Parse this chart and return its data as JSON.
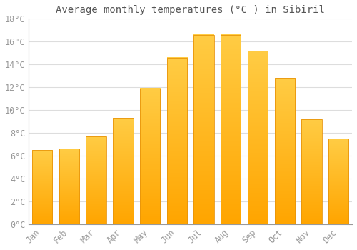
{
  "title": "Average monthly temperatures (°C ) in Sibiril",
  "months": [
    "Jan",
    "Feb",
    "Mar",
    "Apr",
    "May",
    "Jun",
    "Jul",
    "Aug",
    "Sep",
    "Oct",
    "Nov",
    "Dec"
  ],
  "values": [
    6.5,
    6.6,
    7.7,
    9.3,
    11.9,
    14.6,
    16.6,
    16.6,
    15.2,
    12.8,
    9.2,
    7.5
  ],
  "bar_color_top": "#FFCC44",
  "bar_color_bottom": "#FFA500",
  "bar_edge_color": "#E8940A",
  "background_color": "#FFFFFF",
  "grid_color": "#DDDDDD",
  "text_color": "#999999",
  "title_color": "#555555",
  "ylim": [
    0,
    18
  ],
  "yticks": [
    0,
    2,
    4,
    6,
    8,
    10,
    12,
    14,
    16,
    18
  ],
  "title_fontsize": 10,
  "tick_fontsize": 8.5,
  "figwidth": 5.0,
  "figheight": 3.5,
  "dpi": 100
}
